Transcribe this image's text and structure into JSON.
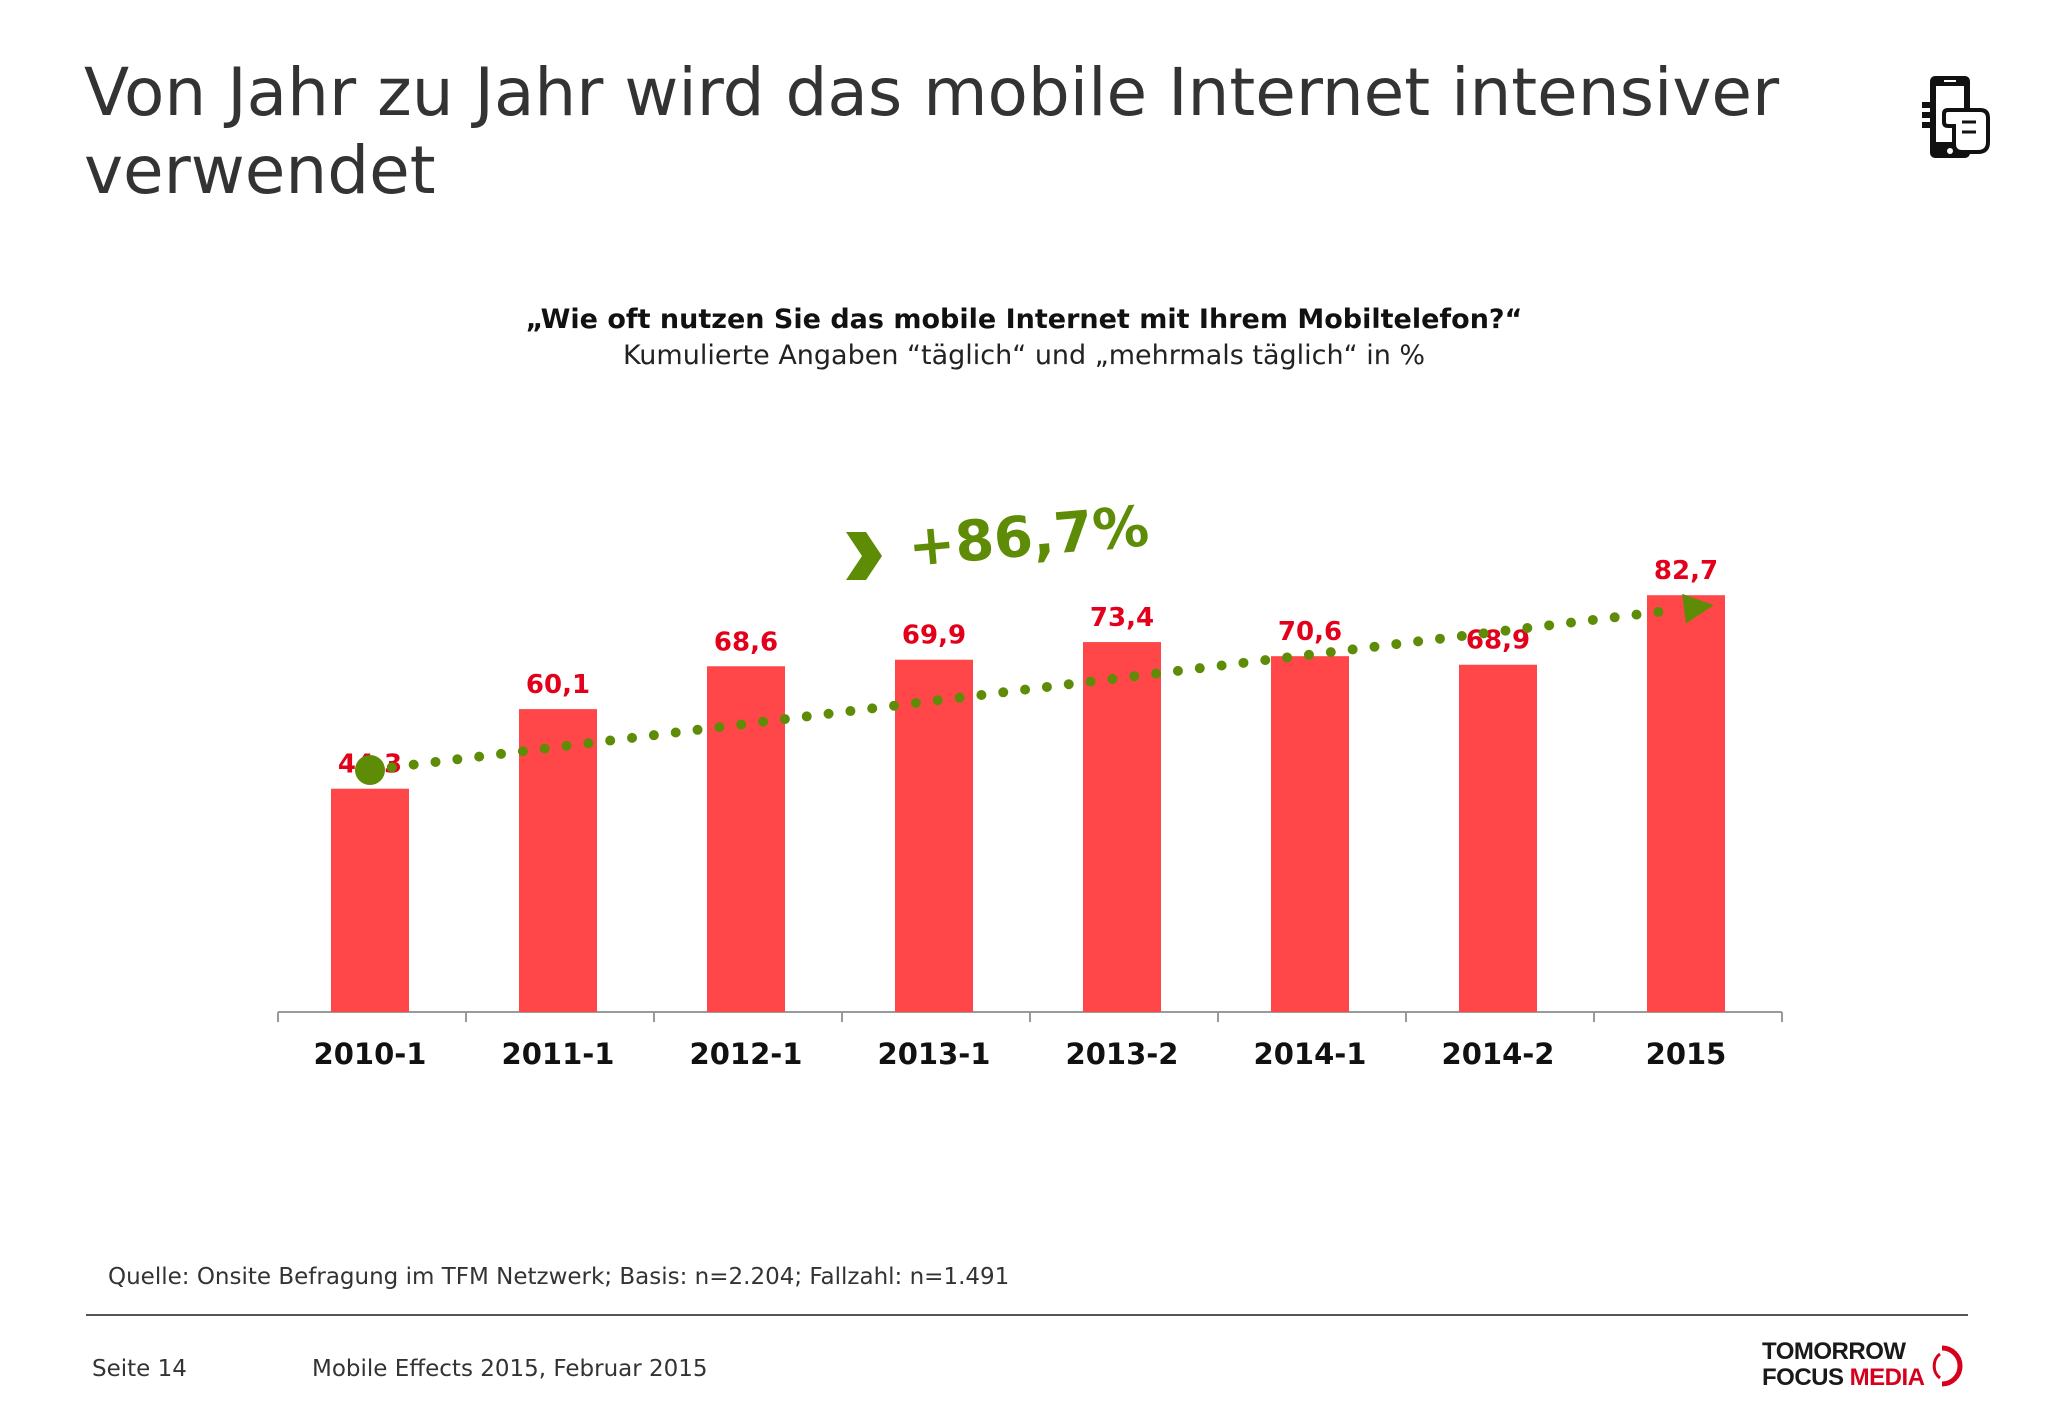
{
  "header": {
    "title": "Von Jahr zu Jahr wird das mobile Internet intensiver verwendet",
    "icon": "phone-touch-icon"
  },
  "chart_data": {
    "type": "bar",
    "title": "„Wie oft nutzen Sie das mobile Internet mit Ihrem Mobiltelefon?“",
    "subtitle": "Kumulierte Angaben “täglich“ und „mehrmals täglich“  in %",
    "categories": [
      "2010-1",
      "2011-1",
      "2012-1",
      "2013-1",
      "2013-2",
      "2014-1",
      "2014-2",
      "2015"
    ],
    "values": [
      44.3,
      60.1,
      68.6,
      69.9,
      73.4,
      70.6,
      68.9,
      82.7
    ],
    "value_labels": [
      "44,3",
      "60,1",
      "68,6",
      "69,9",
      "73,4",
      "70,6",
      "68,9",
      "82,7"
    ],
    "ylim": [
      0,
      100
    ],
    "grid": false,
    "legend": "none",
    "bar_color": "#ff474a",
    "label_color": "#e3001b",
    "trend": {
      "label": "+86,7%",
      "color": "#5e8c06",
      "style": "dotted-arrow"
    }
  },
  "footer": {
    "source": "Quelle: Onsite Befragung im TFM Netzwerk; Basis: n=2.204; Fallzahl: n=1.491",
    "page": "Seite 14",
    "document": "Mobile Effects 2015, Februar 2015",
    "logo_line1": "TOMORROW",
    "logo_line2a": "FOCUS ",
    "logo_line2b": "MEDIA"
  }
}
